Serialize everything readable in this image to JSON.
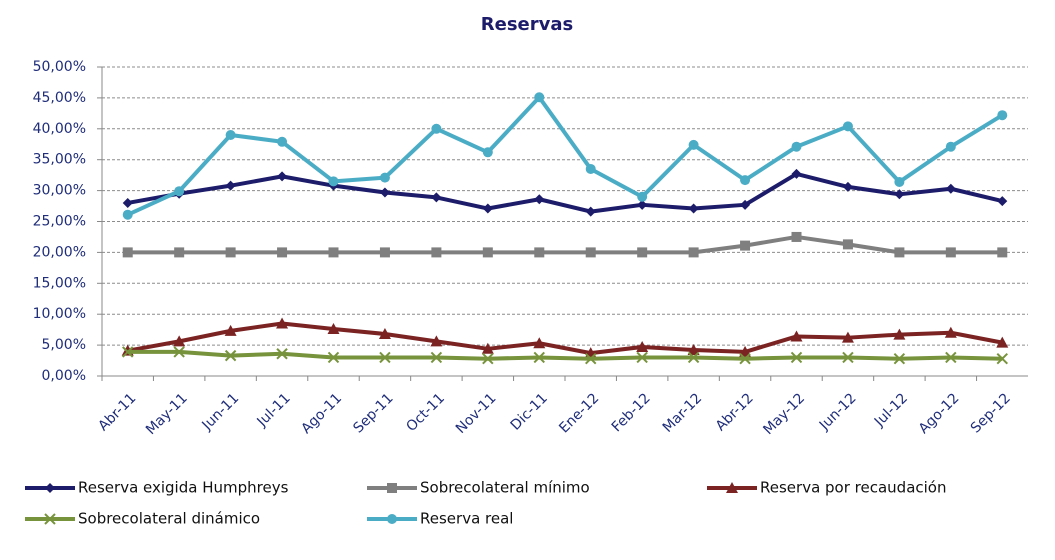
{
  "chart_data": {
    "type": "line",
    "title": "Reservas",
    "categories": [
      "Abr-11",
      "May-11",
      "Jun-11",
      "Jul-11",
      "Ago-11",
      "Sep-11",
      "Oct-11",
      "Nov-11",
      "Dic-11",
      "Ene-12",
      "Feb-12",
      "Mar-12",
      "Abr-12",
      "May-12",
      "Jun-12",
      "Jul-12",
      "Ago-12",
      "Sep-12"
    ],
    "series": [
      {
        "name": "Reserva exigida Humphreys",
        "color": "#1c1c6b",
        "marker": "diamond",
        "values": [
          28.0,
          29.5,
          30.8,
          32.3,
          30.8,
          29.7,
          28.9,
          27.1,
          28.6,
          26.6,
          27.7,
          27.1,
          27.7,
          32.7,
          30.6,
          29.4,
          30.3,
          28.3
        ]
      },
      {
        "name": "Sobrecolateral mínimo",
        "color": "#7f7f7f",
        "marker": "square",
        "values": [
          20,
          20,
          20,
          20,
          20,
          20,
          20,
          20,
          20,
          20,
          20,
          20,
          21.1,
          22.5,
          21.3,
          20,
          20,
          20
        ]
      },
      {
        "name": "Reserva por recaudación",
        "color": "#7b2323",
        "marker": "triangle",
        "values": [
          4.1,
          5.6,
          7.3,
          8.5,
          7.6,
          6.8,
          5.6,
          4.4,
          5.3,
          3.7,
          4.7,
          4.2,
          3.9,
          6.4,
          6.2,
          6.7,
          7.0,
          5.4
        ]
      },
      {
        "name": "Sobrecolateral dinámico",
        "color": "#77933c",
        "marker": "x",
        "values": [
          3.9,
          3.9,
          3.3,
          3.6,
          3.0,
          3.0,
          3.0,
          2.8,
          3.0,
          2.8,
          3.0,
          3.0,
          2.8,
          3.0,
          3.0,
          2.8,
          3.0,
          2.8
        ]
      },
      {
        "name": "Reserva real",
        "color": "#4bacc6",
        "marker": "circle",
        "values": [
          26.1,
          29.9,
          39.0,
          37.9,
          31.5,
          32.1,
          40.0,
          36.2,
          45.1,
          33.5,
          29.0,
          37.4,
          31.7,
          37.1,
          40.4,
          31.4,
          37.1,
          42.2
        ]
      }
    ],
    "ylim": [
      0,
      50
    ],
    "yticks": [
      {
        "value": 0,
        "label": "0,00%"
      },
      {
        "value": 5,
        "label": "5,00%"
      },
      {
        "value": 10,
        "label": "10,00%"
      },
      {
        "value": 15,
        "label": "15,00%"
      },
      {
        "value": 20,
        "label": "20,00%"
      },
      {
        "value": 25,
        "label": "25,00%"
      },
      {
        "value": 30,
        "label": "30,00%"
      },
      {
        "value": 35,
        "label": "35,00%"
      },
      {
        "value": 40,
        "label": "40,00%"
      },
      {
        "value": 45,
        "label": "45,00%"
      },
      {
        "value": 50,
        "label": "50,00%"
      }
    ],
    "grid": true,
    "legend": "bottom"
  }
}
